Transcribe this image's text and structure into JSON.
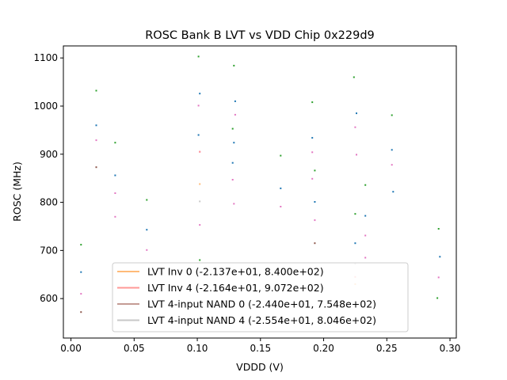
{
  "chart_data": {
    "type": "scatter",
    "title": "ROSC Bank B LVT vs VDD Chip 0x229d9",
    "xlabel": "VDDD (V)",
    "ylabel": "ROSC (MHz)",
    "xlim": [
      -0.006,
      0.305
    ],
    "ylim": [
      518,
      1125
    ],
    "xticks": [
      0.0,
      0.05,
      0.1,
      0.15,
      0.2,
      0.25,
      0.3
    ],
    "xtick_labels": [
      "0.00",
      "0.05",
      "0.10",
      "0.15",
      "0.20",
      "0.25",
      "0.30"
    ],
    "yticks": [
      600,
      700,
      800,
      900,
      1000,
      1100
    ],
    "ytick_labels": [
      "600",
      "700",
      "800",
      "900",
      "1000",
      "1100"
    ],
    "grid": false,
    "legend_position": "lower-center",
    "legend": [
      {
        "label": "LVT Inv 0 (-2.137e+01, 8.400e+02)",
        "color": "#ffbb78"
      },
      {
        "label": "LVT Inv 4 (-2.164e+01, 9.072e+02)",
        "color": "#ff9896"
      },
      {
        "label": "LVT 4-input NAND 0 (-2.440e+01, 7.548e+02)",
        "color": "#c49c94"
      },
      {
        "label": "LVT 4-input NAND 4 (-2.554e+01, 8.046e+02)",
        "color": "#c7c7c7"
      }
    ],
    "series": [
      {
        "color": "#2ca02c",
        "x": [
          0.008,
          0.02,
          0.035,
          0.06,
          0.101,
          0.102,
          0.128,
          0.129,
          0.166,
          0.191,
          0.193,
          0.224,
          0.225,
          0.233,
          0.254,
          0.29,
          0.291
        ],
        "y": [
          712,
          1032,
          924,
          805,
          1103,
          680,
          953,
          1084,
          897,
          1008,
          866,
          1060,
          776,
          836,
          981,
          601,
          745
        ]
      },
      {
        "color": "#1f77b4",
        "x": [
          0.008,
          0.02,
          0.035,
          0.06,
          0.101,
          0.102,
          0.128,
          0.129,
          0.13,
          0.166,
          0.191,
          0.193,
          0.225,
          0.226,
          0.233,
          0.254,
          0.255,
          0.292
        ],
        "y": [
          655,
          960,
          856,
          743,
          940,
          1026,
          882,
          924,
          1010,
          829,
          934,
          801,
          715,
          985,
          772,
          909,
          822,
          687
        ]
      },
      {
        "color": "#e377c2",
        "x": [
          0.008,
          0.02,
          0.035,
          0.035,
          0.06,
          0.101,
          0.102,
          0.102,
          0.128,
          0.129,
          0.13,
          0.166,
          0.191,
          0.191,
          0.193,
          0.225,
          0.226,
          0.233,
          0.233,
          0.254,
          0.291
        ],
        "y": [
          610,
          929,
          819,
          770,
          701,
          1001,
          905,
          753,
          847,
          797,
          982,
          791,
          904,
          849,
          763,
          956,
          899,
          731,
          685,
          878,
          644
        ]
      },
      {
        "color": "#8c564b",
        "x": [
          0.008,
          0.02,
          0.193
        ],
        "y": [
          572,
          873,
          715
        ]
      },
      {
        "color": "#ffbb78",
        "x": [
          0.102,
          0.225
        ],
        "y": [
          838,
          630
        ]
      },
      {
        "color": "#c7c7c7",
        "x": [
          0.102,
          0.225
        ],
        "y": [
          802,
          672
        ]
      },
      {
        "color": "#ff9896",
        "x": [
          0.102,
          0.225
        ],
        "y": [
          905,
          645
        ]
      }
    ]
  }
}
